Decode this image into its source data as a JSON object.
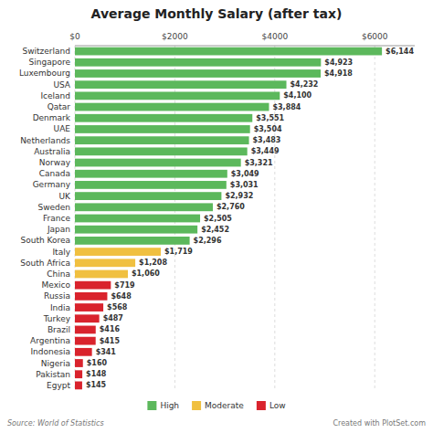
{
  "chart_data": {
    "type": "bar",
    "orientation": "horizontal",
    "title": "Average Monthly Salary (after tax)",
    "categories": [
      "Switzerland",
      "Singapore",
      "Luxembourg",
      "USA",
      "Iceland",
      "Qatar",
      "Denmark",
      "UAE",
      "Netherlands",
      "Australia",
      "Norway",
      "Canada",
      "Germany",
      "UK",
      "Sweden",
      "France",
      "Japan",
      "South Korea",
      "Italy",
      "South Africa",
      "China",
      "Mexico",
      "Russia",
      "India",
      "Turkey",
      "Brazil",
      "Argentina",
      "Indonesia",
      "Nigeria",
      "Pakistan",
      "Egypt"
    ],
    "series": [
      {
        "name": "High",
        "color": "#5cb85c",
        "values": [
          6144,
          4923,
          4918,
          4232,
          4100,
          3884,
          3551,
          3504,
          3483,
          3449,
          3321,
          3049,
          3031,
          2932,
          2760,
          2505,
          2452,
          2296,
          null,
          null,
          null,
          null,
          null,
          null,
          null,
          null,
          null,
          null,
          null,
          null,
          null
        ],
        "value_labels": [
          "$6,144",
          "$4,923",
          "$4,918",
          "$4,232",
          "$4,100",
          "$3,884",
          "$3,551",
          "$3,504",
          "$3,483",
          "$3,449",
          "$3,321",
          "$3,049",
          "$3,031",
          "$2,932",
          "$2,760",
          "$2,505",
          "$2,452",
          "$2,296",
          null,
          null,
          null,
          null,
          null,
          null,
          null,
          null,
          null,
          null,
          null,
          null,
          null
        ]
      },
      {
        "name": "Moderate",
        "color": "#f0c040",
        "values": [
          null,
          null,
          null,
          null,
          null,
          null,
          null,
          null,
          null,
          null,
          null,
          null,
          null,
          null,
          null,
          null,
          null,
          null,
          1719,
          1208,
          1060,
          null,
          null,
          null,
          null,
          null,
          null,
          null,
          null,
          null,
          null
        ],
        "value_labels": [
          null,
          null,
          null,
          null,
          null,
          null,
          null,
          null,
          null,
          null,
          null,
          null,
          null,
          null,
          null,
          null,
          null,
          null,
          "$1,719",
          "$1,208",
          "$1,060",
          null,
          null,
          null,
          null,
          null,
          null,
          null,
          null,
          null,
          null
        ]
      },
      {
        "name": "Low",
        "color": "#d9232d",
        "values": [
          null,
          null,
          null,
          null,
          null,
          null,
          null,
          null,
          null,
          null,
          null,
          null,
          null,
          null,
          null,
          null,
          null,
          null,
          null,
          null,
          null,
          719,
          648,
          568,
          487,
          416,
          415,
          341,
          160,
          148,
          145
        ],
        "value_labels": [
          null,
          null,
          null,
          null,
          null,
          null,
          null,
          null,
          null,
          null,
          null,
          null,
          null,
          null,
          null,
          null,
          null,
          null,
          null,
          null,
          null,
          "$719",
          "$648",
          "$568",
          "$487",
          "$416",
          "$415",
          "$341",
          "$160",
          "$148",
          "$145"
        ]
      }
    ],
    "xlim": [
      0,
      6800
    ],
    "xticks": [
      {
        "value": 0,
        "label": "$0"
      },
      {
        "value": 2000,
        "label": "$2000"
      },
      {
        "value": 4000,
        "label": "$4000"
      },
      {
        "value": 6000,
        "label": "$6000"
      }
    ],
    "grid": true,
    "data_labels": true,
    "legend": "bottom",
    "annotations": [
      "Source: World of Statistics",
      "Created with PlotSet.com"
    ]
  }
}
